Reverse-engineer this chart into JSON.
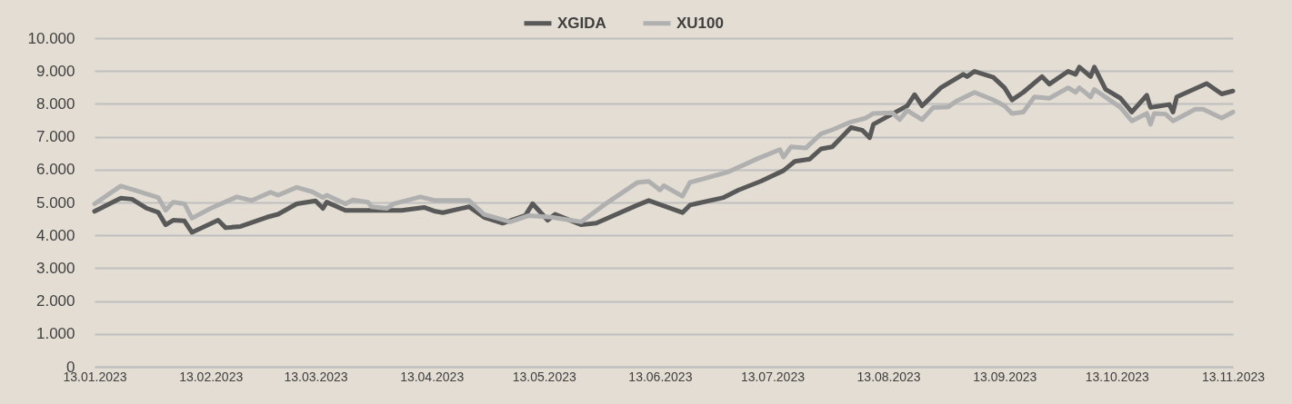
{
  "chart_data": {
    "type": "line",
    "legend": "top",
    "grid": "y",
    "ylim": [
      0,
      10000
    ],
    "yticks": [
      {
        "value": 0,
        "label": "0"
      },
      {
        "value": 1000,
        "label": "1.000"
      },
      {
        "value": 2000,
        "label": "2.000"
      },
      {
        "value": 3000,
        "label": "3.000"
      },
      {
        "value": 4000,
        "label": "4.000"
      },
      {
        "value": 5000,
        "label": "5.000"
      },
      {
        "value": 6000,
        "label": "6.000"
      },
      {
        "value": 7000,
        "label": "7.000"
      },
      {
        "value": 8000,
        "label": "8.000"
      },
      {
        "value": 9000,
        "label": "9.000"
      },
      {
        "value": 10000,
        "label": "10.000"
      }
    ],
    "xlim": [
      "2023-01-13",
      "2023-11-13"
    ],
    "xticks": [
      {
        "value": "2023-01-13",
        "label": "13.01.2023"
      },
      {
        "value": "2023-02-13",
        "label": "13.02.2023"
      },
      {
        "value": "2023-03-13",
        "label": "13.03.2023"
      },
      {
        "value": "2023-04-13",
        "label": "13.04.2023"
      },
      {
        "value": "2023-05-13",
        "label": "13.05.2023"
      },
      {
        "value": "2023-06-13",
        "label": "13.06.2023"
      },
      {
        "value": "2023-07-13",
        "label": "13.07.2023"
      },
      {
        "value": "2023-08-13",
        "label": "13.08.2023"
      },
      {
        "value": "2023-09-13",
        "label": "13.09.2023"
      },
      {
        "value": "2023-10-13",
        "label": "13.10.2023"
      },
      {
        "value": "2023-11-13",
        "label": "13.11.2023"
      }
    ],
    "series": [
      {
        "name": "XGIDA",
        "color": "#595959",
        "x": [
          "2023-01-13",
          "2023-01-20",
          "2023-01-23",
          "2023-01-27",
          "2023-01-30",
          "2023-02-01",
          "2023-02-03",
          "2023-02-06",
          "2023-02-08",
          "2023-02-15",
          "2023-02-17",
          "2023-02-21",
          "2023-02-28",
          "2023-03-03",
          "2023-03-08",
          "2023-03-13",
          "2023-03-15",
          "2023-03-16",
          "2023-03-21",
          "2023-03-28",
          "2023-04-05",
          "2023-04-11",
          "2023-04-14",
          "2023-04-16",
          "2023-04-23",
          "2023-04-27",
          "2023-05-02",
          "2023-05-08",
          "2023-05-10",
          "2023-05-14",
          "2023-05-16",
          "2023-05-23",
          "2023-05-27",
          "2023-06-07",
          "2023-06-10",
          "2023-06-19",
          "2023-06-21",
          "2023-06-30",
          "2023-07-04",
          "2023-07-10",
          "2023-07-16",
          "2023-07-19",
          "2023-07-23",
          "2023-07-26",
          "2023-07-29",
          "2023-08-03",
          "2023-08-06",
          "2023-08-08",
          "2023-08-09",
          "2023-08-18",
          "2023-08-20",
          "2023-08-22",
          "2023-08-27",
          "2023-09-02",
          "2023-09-03",
          "2023-09-05",
          "2023-09-10",
          "2023-09-13",
          "2023-09-15",
          "2023-09-18",
          "2023-09-23",
          "2023-09-25",
          "2023-09-30",
          "2023-10-02",
          "2023-10-03",
          "2023-10-06",
          "2023-10-07",
          "2023-10-10",
          "2023-10-14",
          "2023-10-17",
          "2023-10-21",
          "2023-10-22",
          "2023-10-27",
          "2023-10-28",
          "2023-10-29",
          "2023-11-06",
          "2023-11-10",
          "2023-11-13"
        ],
        "values": [
          4730,
          5130,
          5100,
          4820,
          4700,
          4320,
          4460,
          4440,
          4090,
          4460,
          4230,
          4270,
          4550,
          4640,
          4960,
          5050,
          4820,
          5010,
          4760,
          4760,
          4760,
          4850,
          4730,
          4690,
          4870,
          4550,
          4370,
          4600,
          4960,
          4460,
          4640,
          4320,
          4370,
          4920,
          5060,
          4690,
          4920,
          5150,
          5380,
          5650,
          5970,
          6250,
          6320,
          6630,
          6690,
          7280,
          7200,
          6970,
          7380,
          7940,
          8280,
          7940,
          8490,
          8900,
          8830,
          8990,
          8810,
          8490,
          8120,
          8350,
          8830,
          8600,
          8990,
          8900,
          9120,
          8830,
          9120,
          8440,
          8170,
          7750,
          8260,
          7890,
          7980,
          7750,
          8210,
          8620,
          8300,
          8390
        ]
      },
      {
        "name": "XU100",
        "color": "#b0b0b0",
        "x": [
          "2023-01-13",
          "2023-01-20",
          "2023-01-25",
          "2023-01-30",
          "2023-02-01",
          "2023-02-03",
          "2023-02-06",
          "2023-02-08",
          "2023-02-13",
          "2023-02-20",
          "2023-02-24",
          "2023-03-01",
          "2023-03-03",
          "2023-03-08",
          "2023-03-12",
          "2023-03-15",
          "2023-03-16",
          "2023-03-21",
          "2023-03-23",
          "2023-03-27",
          "2023-03-28",
          "2023-04-01",
          "2023-04-03",
          "2023-04-10",
          "2023-04-14",
          "2023-04-23",
          "2023-04-27",
          "2023-05-04",
          "2023-05-09",
          "2023-05-15",
          "2023-05-23",
          "2023-05-29",
          "2023-06-07",
          "2023-06-10",
          "2023-06-13",
          "2023-06-14",
          "2023-06-19",
          "2023-06-21",
          "2023-07-01",
          "2023-07-09",
          "2023-07-15",
          "2023-07-16",
          "2023-07-18",
          "2023-07-22",
          "2023-07-26",
          "2023-07-29",
          "2023-08-03",
          "2023-08-07",
          "2023-08-09",
          "2023-08-14",
          "2023-08-16",
          "2023-08-18",
          "2023-08-22",
          "2023-08-25",
          "2023-08-29",
          "2023-08-31",
          "2023-09-05",
          "2023-09-10",
          "2023-09-13",
          "2023-09-15",
          "2023-09-18",
          "2023-09-21",
          "2023-09-25",
          "2023-09-30",
          "2023-10-02",
          "2023-10-03",
          "2023-10-06",
          "2023-10-07",
          "2023-10-14",
          "2023-10-17",
          "2023-10-21",
          "2023-10-22",
          "2023-10-23",
          "2023-10-26",
          "2023-10-28",
          "2023-11-03",
          "2023-11-05",
          "2023-11-10",
          "2023-11-13"
        ],
        "values": [
          4960,
          5500,
          5330,
          5150,
          4760,
          5010,
          4960,
          4520,
          4820,
          5170,
          5060,
          5310,
          5220,
          5460,
          5330,
          5150,
          5220,
          4960,
          5080,
          5010,
          4870,
          4820,
          4960,
          5170,
          5060,
          5060,
          4640,
          4410,
          4600,
          4550,
          4410,
          4920,
          5610,
          5640,
          5380,
          5510,
          5190,
          5610,
          5920,
          6330,
          6610,
          6380,
          6690,
          6660,
          7090,
          7210,
          7450,
          7570,
          7710,
          7730,
          7520,
          7800,
          7520,
          7890,
          7910,
          8070,
          8350,
          8120,
          7940,
          7710,
          7750,
          8210,
          8170,
          8490,
          8350,
          8490,
          8210,
          8440,
          7890,
          7480,
          7710,
          7380,
          7710,
          7690,
          7480,
          7840,
          7840,
          7570,
          7750
        ]
      }
    ]
  }
}
